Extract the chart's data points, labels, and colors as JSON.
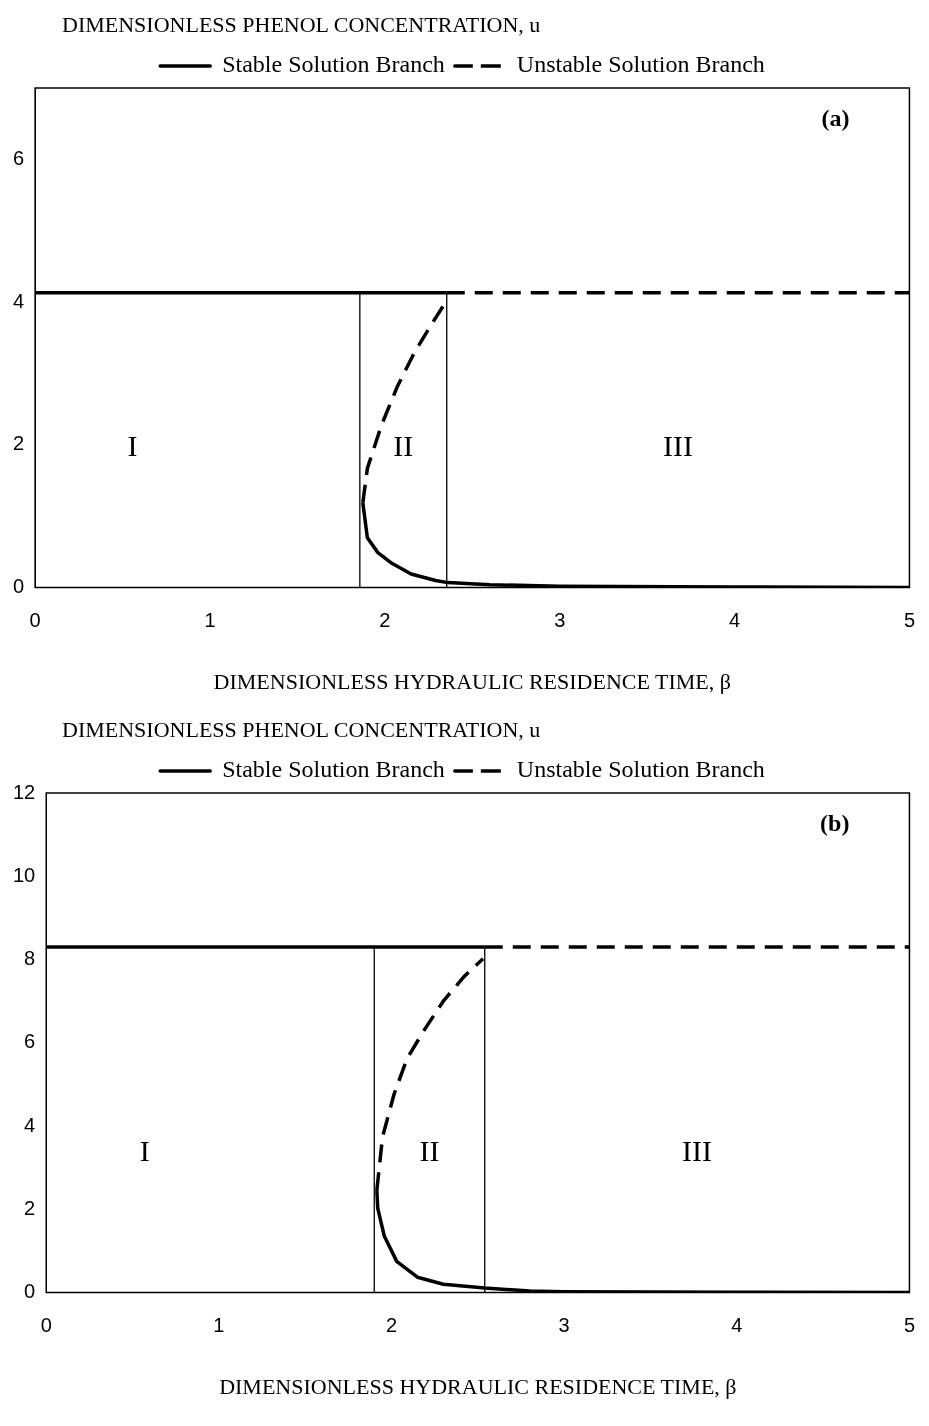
{
  "chart_data": [
    {
      "type": "line",
      "ylabel": "DIMENSIONLESS PHENOL CONCENTRATION, u",
      "xlabel": "DIMENSIONLESS HYDRAULIC RESIDENCE TIME, β",
      "xlim": [
        0,
        5
      ],
      "xticks": [
        0,
        1,
        2,
        3,
        4,
        5
      ],
      "ylim": [
        0,
        7
      ],
      "yticks": [
        0,
        2,
        4,
        6
      ],
      "grid": false,
      "legend": "top",
      "marker": "none",
      "series": [
        {
          "name": "Stable Solution Branch",
          "color": "#000000",
          "line_style": "solid",
          "x": [
            0,
            2.354,
            null,
            1.874,
            1.9,
            1.96,
            2.04,
            2.15,
            2.29,
            2.36,
            2.6,
            3,
            4,
            5
          ],
          "values": [
            4.13,
            4.13,
            null,
            1.19,
            0.7,
            0.49,
            0.34,
            0.19,
            0.1,
            0.07,
            0.04,
            0.02,
            0.01,
            0
          ]
        },
        {
          "name": "Unstable Solution Branch",
          "color": "#000000",
          "line_style": "dashed",
          "x": [
            1.874,
            1.9,
            1.98,
            2.07,
            2.17,
            2.27,
            2.34,
            null,
            2.354,
            5
          ],
          "values": [
            1.19,
            1.67,
            2.27,
            2.81,
            3.3,
            3.7,
            3.97,
            null,
            4.13,
            4.13
          ]
        },
        {
          "color": "#000000",
          "line_style": "solid",
          "x": [
            1.857,
            1.857
          ],
          "values": [
            0,
            4.13
          ]
        },
        {
          "color": "#000000",
          "line_style": "solid",
          "x": [
            2.354,
            2.354
          ],
          "values": [
            0,
            4.13
          ]
        }
      ],
      "annotations": [
        "(a)",
        "I",
        "II",
        "III"
      ]
    },
    {
      "type": "line",
      "ylabel": "DIMENSIONLESS PHENOL CONCENTRATION, u",
      "xlabel": "DIMENSIONLESS HYDRAULIC RESIDENCE TIME, β",
      "xlim": [
        0,
        5
      ],
      "xticks": [
        0,
        1,
        2,
        3,
        4,
        5
      ],
      "ylim": [
        0,
        12
      ],
      "yticks": [
        0,
        2,
        4,
        6,
        8,
        10,
        12
      ],
      "grid": false,
      "legend": "top",
      "marker": "none",
      "series": [
        {
          "name": "Stable Solution Branch",
          "color": "#000000",
          "line_style": "solid",
          "x": [
            0,
            2.54,
            null,
            1.915,
            1.92,
            1.958,
            2.03,
            2.15,
            2.3,
            2.54,
            2.8,
            3,
            4,
            5
          ],
          "values": [
            8.3,
            8.3,
            null,
            2.46,
            2.03,
            1.36,
            0.75,
            0.37,
            0.2,
            0.11,
            0.04,
            0.02,
            0.01,
            0
          ]
        },
        {
          "name": "Unstable Solution Branch",
          "color": "#000000",
          "line_style": "dashed",
          "x": [
            1.915,
            1.948,
            2.015,
            2.09,
            2.19,
            2.3,
            2.42,
            2.53,
            null,
            2.54,
            5
          ],
          "values": [
            2.46,
            3.74,
            4.77,
            5.62,
            6.31,
            7.0,
            7.59,
            8.02,
            null,
            8.3,
            8.3
          ]
        },
        {
          "color": "#000000",
          "line_style": "solid",
          "x": [
            1.9,
            1.9
          ],
          "values": [
            0,
            8.3
          ]
        },
        {
          "color": "#000000",
          "line_style": "solid",
          "x": [
            2.54,
            2.54
          ],
          "values": [
            0,
            8.3
          ]
        }
      ],
      "annotations": [
        "(b)",
        "I",
        "II",
        "III"
      ]
    }
  ]
}
